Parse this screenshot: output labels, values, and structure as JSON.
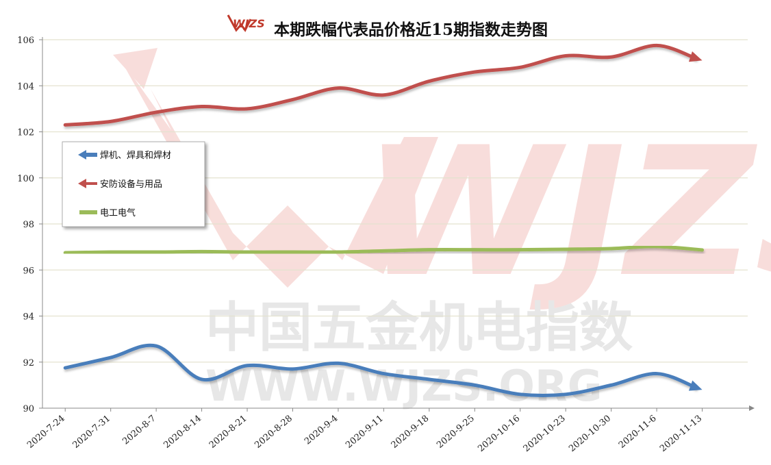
{
  "chart_data": {
    "type": "line",
    "title": "本期跌幅代表品价格近15期指数走势图",
    "logo_text": "WJZS",
    "watermark": {
      "line1": "中国五金机电指数",
      "line2": "WWW.WJZS.ORG",
      "brand": "WJZS"
    },
    "categories": [
      "2020-7-24",
      "2020-7-31",
      "2020-8-7",
      "2020-8-14",
      "2020-8-21",
      "2020-8-28",
      "2020-9-4",
      "2020-9-11",
      "2020-9-18",
      "2020-9-25",
      "2020-10-16",
      "2020-10-23",
      "2020-10-30",
      "2020-11-6",
      "2020-11-13"
    ],
    "y_ticks": [
      "90",
      "92",
      "94",
      "96",
      "98",
      "100",
      "102",
      "104",
      "106"
    ],
    "ylim": [
      90,
      106
    ],
    "grid": true,
    "legend_position": "left-middle",
    "series": [
      {
        "name": "焊机、焊具和焊材",
        "color": "#4a7ebb",
        "values": [
          91.75,
          92.2,
          92.7,
          91.25,
          91.85,
          91.7,
          91.95,
          91.5,
          91.25,
          91.0,
          90.6,
          90.6,
          91.0,
          91.5,
          90.8
        ]
      },
      {
        "name": "安防设备与用品",
        "color": "#c0504d",
        "values": [
          102.3,
          102.45,
          102.85,
          103.1,
          103.0,
          103.4,
          103.9,
          103.6,
          104.2,
          104.6,
          104.8,
          105.3,
          105.25,
          105.75,
          105.1
        ]
      },
      {
        "name": "电工电气",
        "color": "#9bbb59",
        "values": [
          96.75,
          96.78,
          96.78,
          96.8,
          96.78,
          96.78,
          96.78,
          96.83,
          96.88,
          96.88,
          96.88,
          96.9,
          96.93,
          97.02,
          96.87
        ]
      }
    ]
  }
}
